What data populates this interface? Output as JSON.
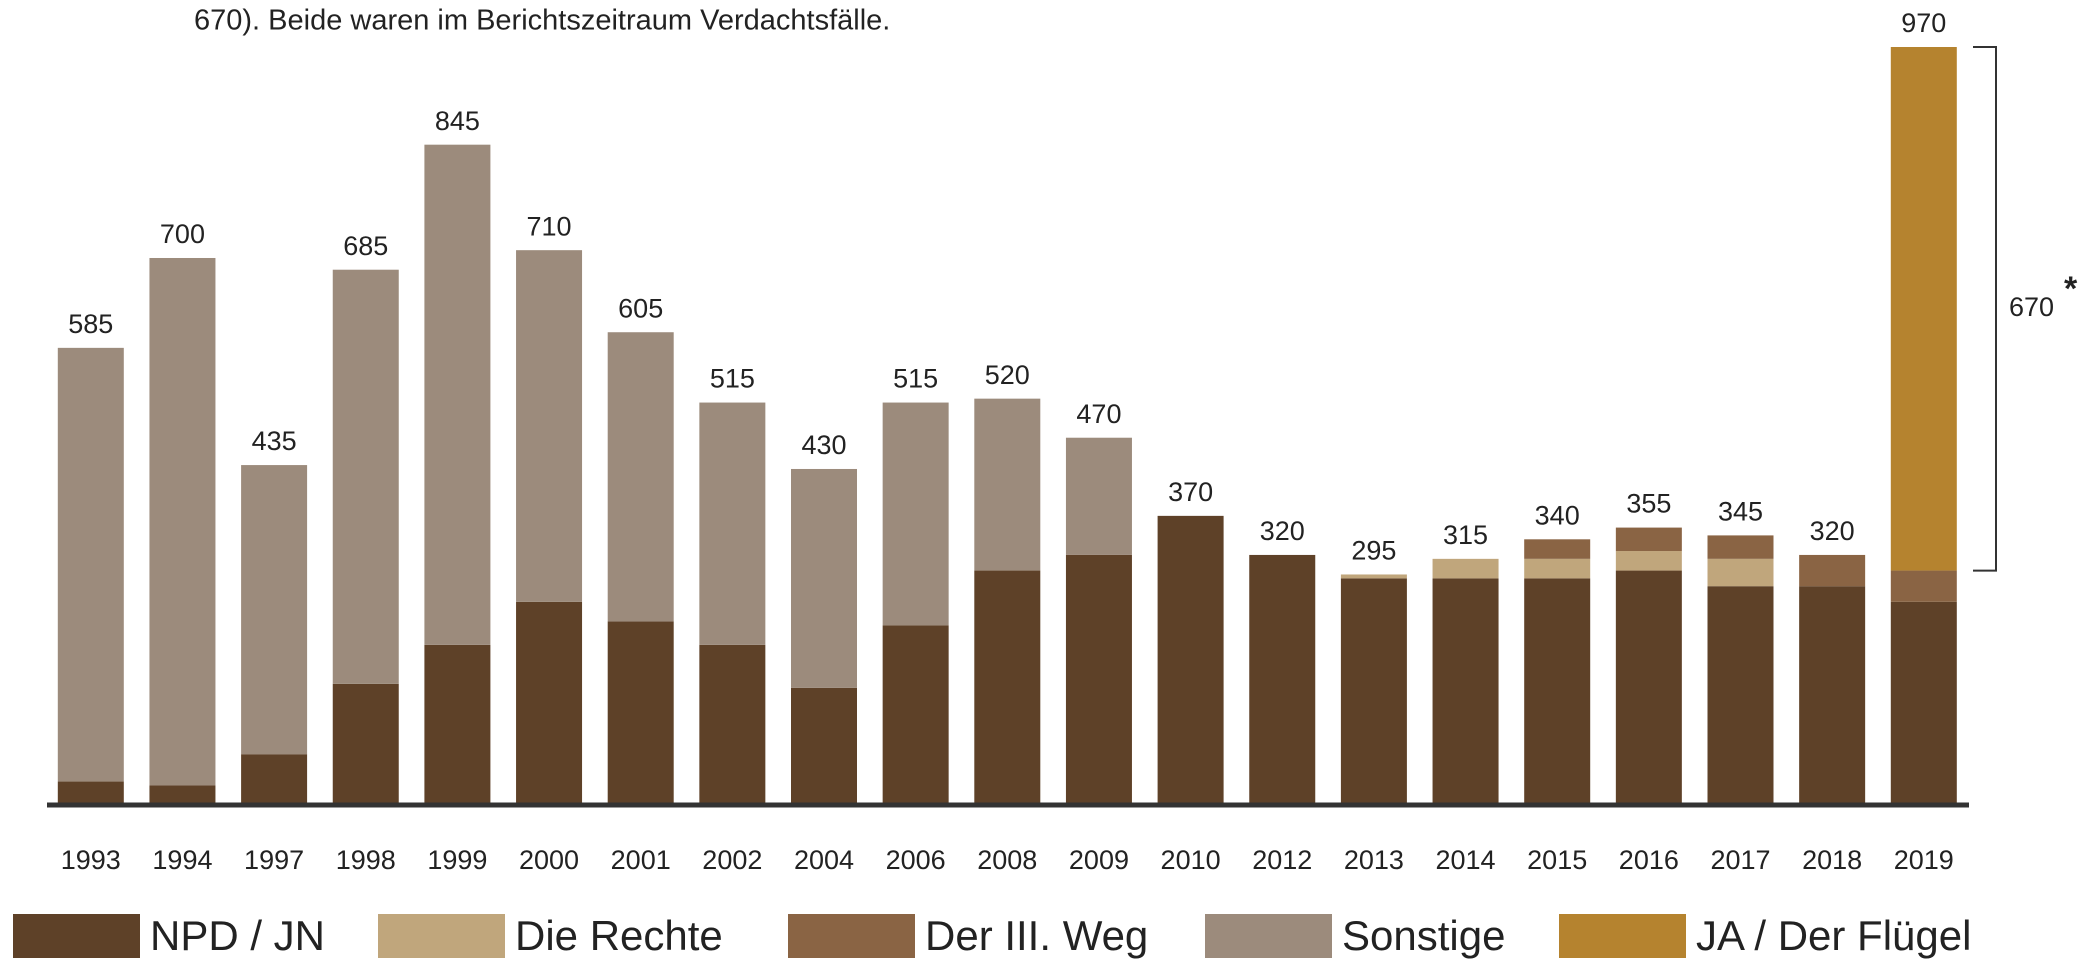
{
  "chart_data": {
    "type": "stacked_bar",
    "note": "670). Beide waren im Berichtszeitraum Verdachtsfälle.",
    "categories": [
      "1993",
      "1994",
      "1997",
      "1998",
      "1999",
      "2000",
      "2001",
      "2002",
      "2004",
      "2006",
      "2008",
      "2009",
      "2010",
      "2012",
      "2013",
      "2014",
      "2015",
      "2016",
      "2017",
      "2018",
      "2019"
    ],
    "series": [
      {
        "name": "NPD / JN",
        "color": "#5e4128",
        "values": [
          30,
          25,
          65,
          155,
          205,
          260,
          235,
          205,
          150,
          230,
          300,
          320,
          370,
          320,
          290,
          290,
          290,
          300,
          280,
          280,
          260
        ]
      },
      {
        "name": "Die Rechte",
        "color": "#c0a67c",
        "values": [
          0,
          0,
          0,
          0,
          0,
          0,
          0,
          0,
          0,
          0,
          0,
          0,
          0,
          0,
          5,
          25,
          25,
          25,
          35,
          0,
          0
        ]
      },
      {
        "name": "Der III. Weg",
        "color": "#8a6444",
        "values": [
          0,
          0,
          0,
          0,
          0,
          0,
          0,
          0,
          0,
          0,
          0,
          0,
          0,
          0,
          0,
          0,
          25,
          30,
          30,
          40,
          40
        ]
      },
      {
        "name": "Sonstige",
        "color": "#9c8b7c",
        "values": [
          555,
          675,
          370,
          530,
          640,
          450,
          370,
          310,
          280,
          285,
          220,
          150,
          0,
          0,
          0,
          0,
          0,
          0,
          0,
          0,
          0
        ]
      },
      {
        "name": "JA / Der Flügel",
        "color": "#b5832f",
        "values": [
          0,
          0,
          0,
          0,
          0,
          0,
          0,
          0,
          0,
          0,
          0,
          0,
          0,
          0,
          0,
          0,
          0,
          0,
          0,
          0,
          670
        ]
      }
    ],
    "totals": [
      585,
      700,
      435,
      685,
      845,
      710,
      605,
      515,
      430,
      515,
      520,
      470,
      370,
      320,
      295,
      315,
      340,
      355,
      345,
      320,
      970
    ],
    "annotation": {
      "label": "670",
      "marker": "*"
    },
    "ylim": [
      0,
      970
    ]
  }
}
